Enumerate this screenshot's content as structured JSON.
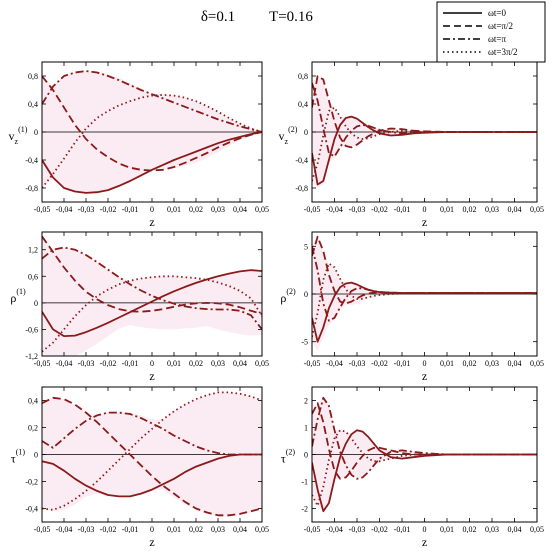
{
  "header": {
    "delta_label": "δ=0.1",
    "temp_label": "T=0.16"
  },
  "legend": {
    "position": "top-right",
    "items": [
      {
        "label": "ωt=0",
        "dash": "solid"
      },
      {
        "label": "ωt=π/2",
        "dash": "dash"
      },
      {
        "label": "ωt=π",
        "dash": "dashdot"
      },
      {
        "label": "ωt=3π/2",
        "dash": "dot"
      }
    ]
  },
  "colors": {
    "curve": "#8b1a1a",
    "band": "#f3c9de",
    "axis": "#000000"
  },
  "chart_data": [
    {
      "type": "line",
      "id": "v1",
      "ylabel": "v_z^(1)",
      "xlabel": "z",
      "xlim": [
        -0.05,
        0.05
      ],
      "ylim": [
        -1.0,
        1.0
      ],
      "xticks": [
        "-0,05",
        "-0,04",
        "-0,03",
        "-0,02",
        "-0,01",
        "0",
        "0,01",
        "0,02",
        "0,03",
        "0,04",
        "0,05"
      ],
      "yticks": [
        {
          "v": 0.8,
          "label": "0,8"
        },
        {
          "v": 0.4,
          "label": "0,4"
        },
        {
          "v": 0,
          "label": "0"
        },
        {
          "v": -0.4,
          "label": "-0,4"
        },
        {
          "v": -0.8,
          "label": "-0,8"
        }
      ],
      "x": [
        -0.05,
        -0.045,
        -0.04,
        -0.035,
        -0.03,
        -0.025,
        -0.02,
        -0.015,
        -0.01,
        -0.005,
        0,
        0.005,
        0.01,
        0.015,
        0.02,
        0.025,
        0.03,
        0.035,
        0.04,
        0.045,
        0.05
      ],
      "series": [
        {
          "label_ref": 0,
          "values": [
            -0.4,
            -0.65,
            -0.8,
            -0.85,
            -0.87,
            -0.86,
            -0.83,
            -0.77,
            -0.7,
            -0.62,
            -0.54,
            -0.47,
            -0.4,
            -0.34,
            -0.28,
            -0.22,
            -0.16,
            -0.11,
            -0.07,
            -0.03,
            0.0
          ]
        },
        {
          "label_ref": 1,
          "values": [
            0.8,
            0.6,
            0.35,
            0.1,
            -0.1,
            -0.25,
            -0.36,
            -0.45,
            -0.51,
            -0.54,
            -0.55,
            -0.54,
            -0.5,
            -0.44,
            -0.37,
            -0.3,
            -0.22,
            -0.15,
            -0.09,
            -0.04,
            0.0
          ]
        },
        {
          "label_ref": 2,
          "values": [
            0.4,
            0.65,
            0.8,
            0.85,
            0.87,
            0.85,
            0.8,
            0.74,
            0.67,
            0.6,
            0.54,
            0.48,
            0.42,
            0.36,
            0.3,
            0.24,
            0.18,
            0.13,
            0.08,
            0.04,
            0.0
          ]
        },
        {
          "label_ref": 3,
          "values": [
            -0.8,
            -0.6,
            -0.38,
            -0.15,
            0.05,
            0.2,
            0.3,
            0.38,
            0.44,
            0.49,
            0.52,
            0.53,
            0.52,
            0.49,
            0.44,
            0.37,
            0.29,
            0.2,
            0.12,
            0.05,
            0.0
          ]
        }
      ]
    },
    {
      "type": "line",
      "id": "v2",
      "ylabel": "v_z^(2)",
      "xlabel": "z",
      "xlim": [
        -0.05,
        0.05
      ],
      "ylim": [
        -1.0,
        1.0
      ],
      "xticks": [
        "-0,05",
        "-0,04",
        "-0,03",
        "-0,02",
        "-0,01",
        "0",
        "0,01",
        "0,02",
        "0,03",
        "0,04",
        "0,05"
      ],
      "yticks": [
        {
          "v": 0.8,
          "label": "0,8"
        },
        {
          "v": 0.4,
          "label": "0,4"
        },
        {
          "v": 0,
          "label": "0"
        },
        {
          "v": -0.4,
          "label": "-0,4"
        },
        {
          "v": -0.8,
          "label": "-0,8"
        }
      ],
      "x": [
        -0.05,
        -0.0475,
        -0.045,
        -0.0425,
        -0.04,
        -0.0375,
        -0.035,
        -0.0325,
        -0.03,
        -0.0275,
        -0.025,
        -0.0225,
        -0.02,
        -0.015,
        -0.01,
        -0.005,
        0,
        0.01,
        0.02,
        0.03,
        0.04,
        0.05
      ],
      "series": [
        {
          "label_ref": 0,
          "values": [
            -0.3,
            -0.75,
            -0.7,
            -0.4,
            -0.1,
            0.1,
            0.2,
            0.22,
            0.19,
            0.13,
            0.07,
            0.02,
            -0.02,
            -0.05,
            -0.04,
            -0.02,
            -0.01,
            0.0,
            0.0,
            0.0,
            0.0,
            0.0
          ]
        },
        {
          "label_ref": 1,
          "values": [
            0.35,
            0.8,
            0.75,
            0.45,
            0.15,
            -0.08,
            -0.2,
            -0.22,
            -0.18,
            -0.12,
            -0.06,
            -0.02,
            0.02,
            0.05,
            0.04,
            0.02,
            0.01,
            0.0,
            0.0,
            0.0,
            0.0,
            0.0
          ]
        },
        {
          "label_ref": 2,
          "values": [
            0.7,
            0.45,
            0.05,
            -0.3,
            -0.35,
            -0.22,
            -0.08,
            0.02,
            0.08,
            0.1,
            0.09,
            0.06,
            0.03,
            0.0,
            -0.02,
            -0.01,
            0.0,
            0.0,
            0.0,
            0.0,
            0.0,
            0.0
          ]
        },
        {
          "label_ref": 3,
          "values": [
            -0.7,
            -0.45,
            -0.05,
            0.3,
            0.35,
            0.22,
            0.08,
            -0.02,
            -0.08,
            -0.1,
            -0.09,
            -0.06,
            -0.03,
            0.0,
            0.02,
            0.01,
            0.0,
            0.0,
            0.0,
            0.0,
            0.0,
            0.0
          ]
        }
      ]
    },
    {
      "type": "line",
      "id": "rho1",
      "ylabel": "ρ^(1)",
      "xlabel": "z",
      "xlim": [
        -0.05,
        0.05
      ],
      "ylim": [
        -1.2,
        1.6
      ],
      "xticks": [
        "-0,05",
        "-0,04",
        "-0,03",
        "-0,02",
        "-0,01",
        "0",
        "0,01",
        "0,02",
        "0,03",
        "0,04",
        "0,05"
      ],
      "yticks": [
        {
          "v": 1.2,
          "label": "1,2"
        },
        {
          "v": 0.6,
          "label": "0,6"
        },
        {
          "v": 0,
          "label": "0"
        },
        {
          "v": -0.6,
          "label": "-0,6"
        },
        {
          "v": -1.2,
          "label": "-1,2"
        }
      ],
      "x": [
        -0.05,
        -0.045,
        -0.04,
        -0.035,
        -0.03,
        -0.025,
        -0.02,
        -0.015,
        -0.01,
        -0.005,
        0,
        0.005,
        0.01,
        0.015,
        0.02,
        0.025,
        0.03,
        0.035,
        0.04,
        0.045,
        0.05
      ],
      "series": [
        {
          "label_ref": 0,
          "values": [
            -0.2,
            -0.6,
            -0.75,
            -0.74,
            -0.66,
            -0.56,
            -0.45,
            -0.33,
            -0.21,
            -0.09,
            0.03,
            0.15,
            0.26,
            0.36,
            0.45,
            0.53,
            0.6,
            0.66,
            0.71,
            0.74,
            0.72
          ]
        },
        {
          "label_ref": 1,
          "values": [
            1.5,
            1.15,
            0.8,
            0.5,
            0.25,
            0.08,
            -0.05,
            -0.14,
            -0.19,
            -0.2,
            -0.18,
            -0.14,
            -0.09,
            -0.04,
            -0.01,
            0.0,
            -0.01,
            -0.04,
            -0.1,
            -0.18,
            -0.25
          ]
        },
        {
          "label_ref": 2,
          "values": [
            1.0,
            1.2,
            1.25,
            1.2,
            1.08,
            0.92,
            0.75,
            0.58,
            0.42,
            0.28,
            0.16,
            0.06,
            -0.02,
            -0.08,
            -0.12,
            -0.14,
            -0.15,
            -0.15,
            -0.18,
            -0.28,
            -0.6
          ]
        },
        {
          "label_ref": 3,
          "values": [
            -1.1,
            -0.9,
            -0.6,
            -0.3,
            -0.05,
            0.15,
            0.3,
            0.42,
            0.5,
            0.55,
            0.58,
            0.6,
            0.6,
            0.58,
            0.56,
            0.52,
            0.46,
            0.38,
            0.27,
            0.1,
            -0.3
          ]
        }
      ]
    },
    {
      "type": "line",
      "id": "rho2",
      "ylabel": "ρ^(2)",
      "xlabel": "z",
      "xlim": [
        -0.05,
        0.05
      ],
      "ylim": [
        -6.5,
        6.5
      ],
      "xticks": [
        "-0,05",
        "-0,04",
        "-0,03",
        "-0,02",
        "-0,01",
        "0",
        "0,01",
        "0,02",
        "0,03",
        "0,04",
        "0,05"
      ],
      "yticks": [
        {
          "v": 5,
          "label": "5"
        },
        {
          "v": 0,
          "label": "0"
        },
        {
          "v": -5,
          "label": "-5"
        }
      ],
      "x": [
        -0.05,
        -0.0475,
        -0.045,
        -0.0425,
        -0.04,
        -0.0375,
        -0.035,
        -0.0325,
        -0.03,
        -0.0275,
        -0.025,
        -0.0225,
        -0.02,
        -0.015,
        -0.01,
        -0.005,
        0,
        0.01,
        0.02,
        0.03,
        0.04,
        0.05
      ],
      "series": [
        {
          "label_ref": 0,
          "values": [
            -2.5,
            -5.0,
            -3.5,
            -1.5,
            -0.2,
            0.7,
            1.1,
            1.2,
            1.0,
            0.7,
            0.45,
            0.3,
            0.2,
            0.15,
            0.1,
            0.1,
            0.1,
            0.1,
            0.1,
            0.1,
            0.1,
            0.1
          ]
        },
        {
          "label_ref": 1,
          "values": [
            4.0,
            6.0,
            4.5,
            2.0,
            0.3,
            -0.8,
            -1.0,
            -0.8,
            -0.45,
            -0.15,
            0.05,
            0.15,
            0.2,
            0.15,
            0.1,
            0.1,
            0.1,
            0.1,
            0.1,
            0.1,
            0.1,
            0.1
          ]
        },
        {
          "label_ref": 2,
          "values": [
            5.0,
            2.5,
            -1.0,
            -2.8,
            -2.5,
            -1.4,
            -0.4,
            0.3,
            0.6,
            0.6,
            0.45,
            0.3,
            0.2,
            0.1,
            0.1,
            0.1,
            0.1,
            0.1,
            0.1,
            0.1,
            0.1,
            0.1
          ]
        },
        {
          "label_ref": 3,
          "values": [
            -4.5,
            -2.0,
            1.5,
            3.2,
            2.8,
            1.6,
            0.5,
            -0.2,
            -0.5,
            -0.5,
            -0.35,
            -0.2,
            -0.1,
            0.0,
            0.05,
            0.1,
            0.1,
            0.1,
            0.1,
            0.1,
            0.1,
            0.1
          ]
        }
      ]
    },
    {
      "type": "line",
      "id": "tau1",
      "ylabel": "τ^(1)",
      "xlabel": "z",
      "xlim": [
        -0.05,
        0.05
      ],
      "ylim": [
        -0.5,
        0.5
      ],
      "xticks": [
        "-0,05",
        "-0,04",
        "-0,03",
        "-0,02",
        "-0,01",
        "0",
        "0,01",
        "0,02",
        "0,03",
        "0,04",
        "0,05"
      ],
      "yticks": [
        {
          "v": 0.4,
          "label": "0,4"
        },
        {
          "v": 0.2,
          "label": "0,2"
        },
        {
          "v": 0,
          "label": "0"
        },
        {
          "v": -0.2,
          "label": "-0,2"
        },
        {
          "v": -0.4,
          "label": "-0,4"
        }
      ],
      "x": [
        -0.05,
        -0.045,
        -0.04,
        -0.035,
        -0.03,
        -0.025,
        -0.02,
        -0.015,
        -0.01,
        -0.005,
        0,
        0.005,
        0.01,
        0.015,
        0.02,
        0.025,
        0.03,
        0.035,
        0.04,
        0.045,
        0.05
      ],
      "series": [
        {
          "label_ref": 0,
          "values": [
            -0.05,
            -0.07,
            -0.12,
            -0.18,
            -0.23,
            -0.27,
            -0.3,
            -0.31,
            -0.31,
            -0.29,
            -0.26,
            -0.22,
            -0.18,
            -0.13,
            -0.09,
            -0.06,
            -0.03,
            -0.01,
            0.0,
            0.0,
            0.0
          ]
        },
        {
          "label_ref": 1,
          "values": [
            0.38,
            0.42,
            0.41,
            0.37,
            0.31,
            0.24,
            0.16,
            0.08,
            0.0,
            -0.08,
            -0.16,
            -0.23,
            -0.29,
            -0.35,
            -0.4,
            -0.43,
            -0.45,
            -0.45,
            -0.44,
            -0.42,
            -0.4
          ]
        },
        {
          "label_ref": 2,
          "values": [
            0.1,
            0.05,
            0.12,
            0.19,
            0.25,
            0.29,
            0.31,
            0.31,
            0.3,
            0.27,
            0.23,
            0.19,
            0.14,
            0.1,
            0.06,
            0.03,
            0.01,
            0.0,
            0.0,
            0.0,
            0.0
          ]
        },
        {
          "label_ref": 3,
          "values": [
            -0.4,
            -0.41,
            -0.38,
            -0.33,
            -0.27,
            -0.2,
            -0.12,
            -0.04,
            0.04,
            0.12,
            0.19,
            0.26,
            0.32,
            0.37,
            0.41,
            0.44,
            0.46,
            0.46,
            0.45,
            0.43,
            0.4
          ]
        }
      ]
    },
    {
      "type": "line",
      "id": "tau2",
      "ylabel": "τ^(2)",
      "xlabel": "z",
      "xlim": [
        -0.05,
        0.05
      ],
      "ylim": [
        -2.5,
        2.5
      ],
      "xticks": [
        "-0,05",
        "-0,04",
        "-0,03",
        "-0,02",
        "-0,01",
        "0",
        "0,01",
        "0,02",
        "0,03",
        "0,04",
        "0,05"
      ],
      "yticks": [
        {
          "v": 2,
          "label": "2"
        },
        {
          "v": 1,
          "label": "1"
        },
        {
          "v": 0,
          "label": "0"
        },
        {
          "v": -1,
          "label": "-1"
        },
        {
          "v": -2,
          "label": "-2"
        }
      ],
      "x": [
        -0.05,
        -0.0475,
        -0.045,
        -0.0425,
        -0.04,
        -0.0375,
        -0.035,
        -0.0325,
        -0.03,
        -0.0275,
        -0.025,
        -0.0225,
        -0.02,
        -0.015,
        -0.01,
        -0.005,
        0,
        0.01,
        0.02,
        0.03,
        0.04,
        0.05
      ],
      "series": [
        {
          "label_ref": 0,
          "values": [
            -0.3,
            -1.3,
            -2.1,
            -1.8,
            -0.9,
            -0.1,
            0.4,
            0.75,
            0.9,
            0.85,
            0.65,
            0.4,
            0.15,
            -0.1,
            -0.15,
            -0.1,
            -0.05,
            0.0,
            0.0,
            0.0,
            0.0,
            0.0
          ]
        },
        {
          "label_ref": 1,
          "values": [
            1.5,
            1.9,
            1.2,
            0.2,
            -0.6,
            -0.9,
            -0.85,
            -0.6,
            -0.3,
            -0.05,
            0.15,
            0.25,
            0.25,
            0.15,
            0.05,
            0.0,
            0.0,
            0.0,
            0.0,
            0.0,
            0.0,
            0.0
          ]
        },
        {
          "label_ref": 2,
          "values": [
            0.3,
            1.3,
            2.1,
            1.8,
            0.9,
            0.1,
            -0.4,
            -0.75,
            -0.9,
            -0.85,
            -0.65,
            -0.4,
            -0.15,
            0.1,
            0.15,
            0.1,
            0.05,
            0.0,
            0.0,
            0.0,
            0.0,
            0.0
          ]
        },
        {
          "label_ref": 3,
          "values": [
            -1.5,
            -1.9,
            -1.2,
            -0.2,
            0.6,
            0.9,
            0.85,
            0.6,
            0.3,
            0.05,
            -0.15,
            -0.25,
            -0.25,
            -0.15,
            -0.05,
            0.0,
            0.0,
            0.0,
            0.0,
            0.0,
            0.0,
            0.0
          ]
        }
      ]
    }
  ]
}
